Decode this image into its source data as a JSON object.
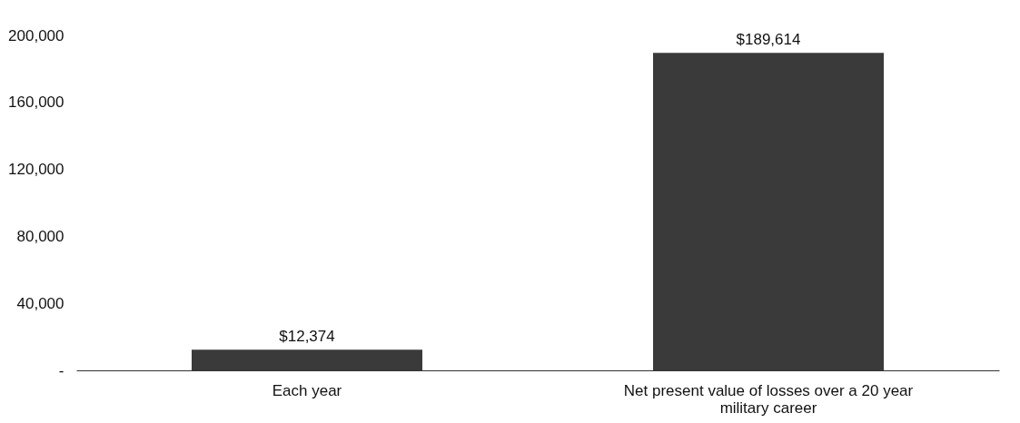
{
  "chart_data": {
    "type": "bar",
    "categories": [
      "Each year",
      "Net present value of losses over a 20 year military career"
    ],
    "values": [
      12374,
      189614
    ],
    "value_labels": [
      "$12,374",
      "$189,614"
    ],
    "color": "#3a3a3a",
    "ylim": [
      0,
      200000
    ],
    "yticks": [
      {
        "value": 0,
        "label": "-"
      },
      {
        "value": 40000,
        "label": "40,000"
      },
      {
        "value": 80000,
        "label": "80,000"
      },
      {
        "value": 120000,
        "label": "120,000"
      },
      {
        "value": 160000,
        "label": "160,000"
      },
      {
        "value": 200000,
        "label": "200,000"
      }
    ],
    "grid": false
  }
}
